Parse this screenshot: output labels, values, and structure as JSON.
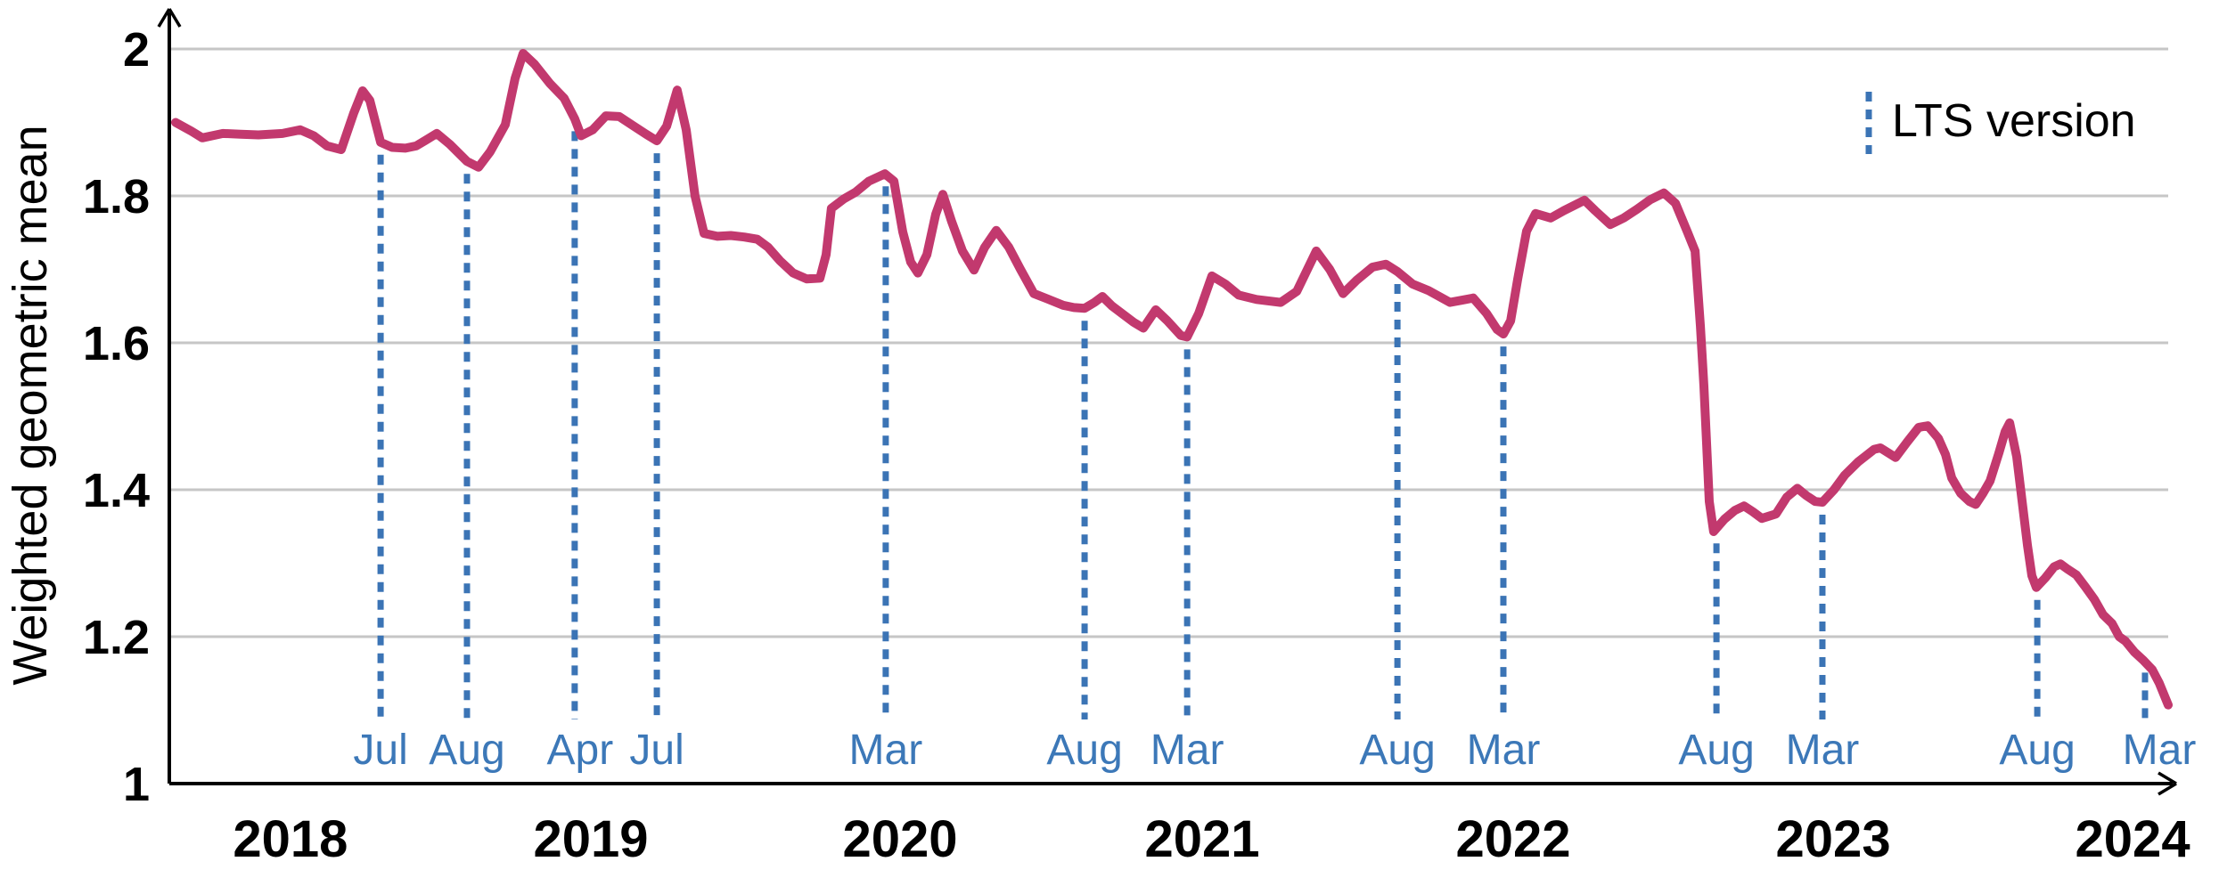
{
  "chart_data": {
    "type": "line",
    "title": "",
    "ylabel": "Weighted geometric mean",
    "legend_label": "LTS version",
    "legend_position": "top-right",
    "grid": "horizontal",
    "ylim": [
      1,
      2
    ],
    "yticks": [
      {
        "value": 2,
        "label": "2"
      },
      {
        "value": 1.8,
        "label": "1.8"
      },
      {
        "value": 1.6,
        "label": "1.6"
      },
      {
        "value": 1.4,
        "label": "1.4"
      },
      {
        "value": 1.2,
        "label": "1.2"
      },
      {
        "value": 1,
        "label": "1"
      }
    ],
    "year_ticks": [
      {
        "label": "2018",
        "f": 0.0606
      },
      {
        "label": "2019",
        "f": 0.2109
      },
      {
        "label": "2020",
        "f": 0.3656
      },
      {
        "label": "2021",
        "f": 0.5167
      },
      {
        "label": "2022",
        "f": 0.6723
      },
      {
        "label": "2023",
        "f": 0.8324
      },
      {
        "label": "2024",
        "f": 0.9822
      }
    ],
    "lts_markers": [
      {
        "month": "Jul",
        "year": 2018,
        "f": 0.1057,
        "v": 1.873,
        "dx": 0
      },
      {
        "month": "Aug",
        "year": 2018,
        "f": 0.1489,
        "v": 1.847,
        "dx": 0
      },
      {
        "month": "Apr",
        "year": 2019,
        "f": 0.2028,
        "v": 1.905,
        "dx": 6
      },
      {
        "month": "Jul",
        "year": 2019,
        "f": 0.2439,
        "v": 1.875,
        "dx": 0
      },
      {
        "month": "Mar",
        "year": 2020,
        "f": 0.3584,
        "v": 1.83,
        "dx": 0
      },
      {
        "month": "Aug",
        "year": 2020,
        "f": 0.4579,
        "v": 1.647,
        "dx": 0
      },
      {
        "month": "Mar",
        "year": 2021,
        "f": 0.5092,
        "v": 1.608,
        "dx": 0
      },
      {
        "month": "Aug",
        "year": 2021,
        "f": 0.6144,
        "v": 1.697,
        "dx": 0
      },
      {
        "month": "Mar",
        "year": 2022,
        "f": 0.6674,
        "v": 1.612,
        "dx": 0
      },
      {
        "month": "Aug",
        "year": 2022,
        "f": 0.774,
        "v": 1.344,
        "dx": 0
      },
      {
        "month": "Mar",
        "year": 2023,
        "f": 0.827,
        "v": 1.383,
        "dx": 0
      },
      {
        "month": "Aug",
        "year": 2023,
        "f": 0.9345,
        "v": 1.267,
        "dx": 0
      },
      {
        "month": "Mar",
        "year": 2024,
        "f": 0.9884,
        "v": 1.168,
        "dx": 16
      }
    ],
    "series": [
      {
        "name": "Weighted geometric mean",
        "points": [
          [
            0.0031,
            1.9
          ],
          [
            0.0111,
            1.888
          ],
          [
            0.0165,
            1.879
          ],
          [
            0.0268,
            1.885
          ],
          [
            0.0357,
            1.884
          ],
          [
            0.0446,
            1.883
          ],
          [
            0.0566,
            1.885
          ],
          [
            0.0655,
            1.89
          ],
          [
            0.0722,
            1.882
          ],
          [
            0.0789,
            1.868
          ],
          [
            0.086,
            1.863
          ],
          [
            0.0923,
            1.913
          ],
          [
            0.0967,
            1.943
          ],
          [
            0.1003,
            1.93
          ],
          [
            0.1057,
            1.873
          ],
          [
            0.1115,
            1.866
          ],
          [
            0.1181,
            1.865
          ],
          [
            0.1235,
            1.868
          ],
          [
            0.1284,
            1.876
          ],
          [
            0.1338,
            1.885
          ],
          [
            0.1404,
            1.87
          ],
          [
            0.1489,
            1.847
          ],
          [
            0.1547,
            1.839
          ],
          [
            0.1605,
            1.86
          ],
          [
            0.1681,
            1.897
          ],
          [
            0.173,
            1.96
          ],
          [
            0.177,
            1.994
          ],
          [
            0.1828,
            1.979
          ],
          [
            0.1904,
            1.953
          ],
          [
            0.1975,
            1.933
          ],
          [
            0.2028,
            1.905
          ],
          [
            0.206,
            1.882
          ],
          [
            0.2118,
            1.89
          ],
          [
            0.2184,
            1.909
          ],
          [
            0.2251,
            1.908
          ],
          [
            0.2318,
            1.896
          ],
          [
            0.2385,
            1.884
          ],
          [
            0.2439,
            1.875
          ],
          [
            0.2488,
            1.895
          ],
          [
            0.2541,
            1.944
          ],
          [
            0.2586,
            1.89
          ],
          [
            0.263,
            1.8
          ],
          [
            0.2675,
            1.749
          ],
          [
            0.2742,
            1.745
          ],
          [
            0.2809,
            1.746
          ],
          [
            0.2876,
            1.744
          ],
          [
            0.2942,
            1.741
          ],
          [
            0.2996,
            1.73
          ],
          [
            0.3054,
            1.712
          ],
          [
            0.3121,
            1.695
          ],
          [
            0.3188,
            1.687
          ],
          [
            0.3255,
            1.688
          ],
          [
            0.3286,
            1.72
          ],
          [
            0.3312,
            1.783
          ],
          [
            0.3375,
            1.796
          ],
          [
            0.3433,
            1.805
          ],
          [
            0.35,
            1.82
          ],
          [
            0.358,
            1.83
          ],
          [
            0.3625,
            1.82
          ],
          [
            0.3669,
            1.751
          ],
          [
            0.3709,
            1.71
          ],
          [
            0.3745,
            1.695
          ],
          [
            0.379,
            1.72
          ],
          [
            0.3834,
            1.775
          ],
          [
            0.387,
            1.802
          ],
          [
            0.3914,
            1.765
          ],
          [
            0.3968,
            1.725
          ],
          [
            0.4026,
            1.699
          ],
          [
            0.4079,
            1.73
          ],
          [
            0.4137,
            1.753
          ],
          [
            0.42,
            1.73
          ],
          [
            0.4258,
            1.7
          ],
          [
            0.4325,
            1.667
          ],
          [
            0.4391,
            1.66
          ],
          [
            0.4472,
            1.651
          ],
          [
            0.4525,
            1.648
          ],
          [
            0.4579,
            1.647
          ],
          [
            0.4628,
            1.655
          ],
          [
            0.4668,
            1.663
          ],
          [
            0.4717,
            1.65
          ],
          [
            0.477,
            1.639
          ],
          [
            0.4824,
            1.628
          ],
          [
            0.4873,
            1.62
          ],
          [
            0.4935,
            1.645
          ],
          [
            0.4993,
            1.63
          ],
          [
            0.506,
            1.61
          ],
          [
            0.5092,
            1.608
          ],
          [
            0.515,
            1.64
          ],
          [
            0.5216,
            1.691
          ],
          [
            0.5283,
            1.68
          ],
          [
            0.535,
            1.665
          ],
          [
            0.5439,
            1.659
          ],
          [
            0.556,
            1.655
          ],
          [
            0.564,
            1.67
          ],
          [
            0.5738,
            1.725
          ],
          [
            0.5805,
            1.7
          ],
          [
            0.5872,
            1.667
          ],
          [
            0.5939,
            1.685
          ],
          [
            0.6019,
            1.703
          ],
          [
            0.6086,
            1.707
          ],
          [
            0.6144,
            1.697
          ],
          [
            0.622,
            1.68
          ],
          [
            0.63,
            1.671
          ],
          [
            0.6407,
            1.655
          ],
          [
            0.6465,
            1.658
          ],
          [
            0.6523,
            1.661
          ],
          [
            0.659,
            1.64
          ],
          [
            0.6643,
            1.618
          ],
          [
            0.6674,
            1.612
          ],
          [
            0.671,
            1.63
          ],
          [
            0.6746,
            1.687
          ],
          [
            0.679,
            1.752
          ],
          [
            0.6835,
            1.776
          ],
          [
            0.6911,
            1.77
          ],
          [
            0.6977,
            1.78
          ],
          [
            0.708,
            1.794
          ],
          [
            0.7133,
            1.78
          ],
          [
            0.7209,
            1.761
          ],
          [
            0.7276,
            1.77
          ],
          [
            0.7343,
            1.782
          ],
          [
            0.741,
            1.795
          ],
          [
            0.7477,
            1.804
          ],
          [
            0.7535,
            1.79
          ],
          [
            0.7593,
            1.752
          ],
          [
            0.7633,
            1.725
          ],
          [
            0.766,
            1.622
          ],
          [
            0.7677,
            1.541
          ],
          [
            0.7691,
            1.461
          ],
          [
            0.7704,
            1.384
          ],
          [
            0.7726,
            1.343
          ],
          [
            0.778,
            1.36
          ],
          [
            0.7833,
            1.372
          ],
          [
            0.7878,
            1.378
          ],
          [
            0.7922,
            1.37
          ],
          [
            0.7967,
            1.361
          ],
          [
            0.8038,
            1.367
          ],
          [
            0.8092,
            1.39
          ],
          [
            0.8145,
            1.402
          ],
          [
            0.819,
            1.392
          ],
          [
            0.8234,
            1.384
          ],
          [
            0.827,
            1.383
          ],
          [
            0.8328,
            1.4
          ],
          [
            0.8382,
            1.42
          ],
          [
            0.8449,
            1.438
          ],
          [
            0.8529,
            1.455
          ],
          [
            0.856,
            1.457
          ],
          [
            0.8636,
            1.444
          ],
          [
            0.8694,
            1.465
          ],
          [
            0.8752,
            1.485
          ],
          [
            0.8797,
            1.487
          ],
          [
            0.885,
            1.47
          ],
          [
            0.8886,
            1.448
          ],
          [
            0.8917,
            1.416
          ],
          [
            0.8962,
            1.395
          ],
          [
            0.9006,
            1.384
          ],
          [
            0.9037,
            1.38
          ],
          [
            0.9073,
            1.395
          ],
          [
            0.9109,
            1.412
          ],
          [
            0.9153,
            1.45
          ],
          [
            0.9184,
            1.479
          ],
          [
            0.9207,
            1.491
          ],
          [
            0.9242,
            1.445
          ],
          [
            0.9273,
            1.376
          ],
          [
            0.9296,
            1.324
          ],
          [
            0.9318,
            1.283
          ],
          [
            0.934,
            1.267
          ],
          [
            0.9385,
            1.28
          ],
          [
            0.9429,
            1.295
          ],
          [
            0.9461,
            1.299
          ],
          [
            0.9496,
            1.292
          ],
          [
            0.9541,
            1.284
          ],
          [
            0.9585,
            1.268
          ],
          [
            0.963,
            1.251
          ],
          [
            0.9674,
            1.23
          ],
          [
            0.9719,
            1.218
          ],
          [
            0.9755,
            1.2
          ],
          [
            0.9786,
            1.194
          ],
          [
            0.9831,
            1.179
          ],
          [
            0.9875,
            1.168
          ],
          [
            0.992,
            1.155
          ],
          [
            0.9955,
            1.137
          ],
          [
            1.0,
            1.107
          ]
        ]
      }
    ],
    "colors": {
      "series": "#c2396e",
      "lts_marker": "#3b74b5",
      "month_label": "#3c78b8",
      "grid": "#c6c6c6",
      "axis": "#000000"
    }
  }
}
